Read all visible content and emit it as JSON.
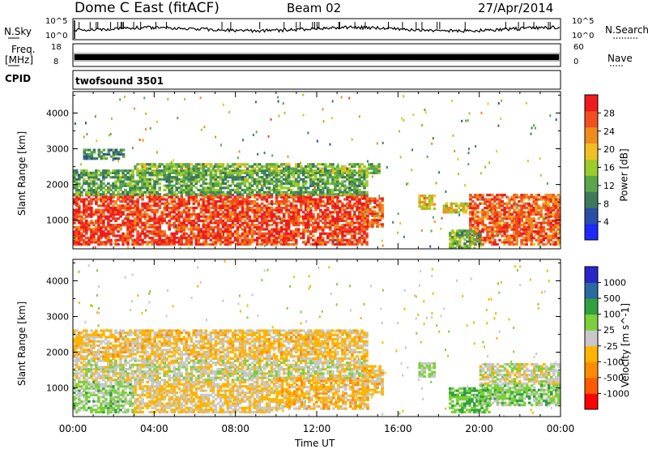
{
  "header": {
    "station": "Dome C East (fitACF)",
    "beam": "Beam 02",
    "date": "27/Apr/2014"
  },
  "top_panels": {
    "nsky_label": "N.Sky",
    "nsky_ticks": [
      "10^5",
      "10^0"
    ],
    "nsearch_label": "N.Search",
    "nsearch_ticks": [
      "10^5",
      "10^0"
    ],
    "freq_label_line1": "Freq.",
    "freq_label_line2": "[MHz]",
    "freq_ticks": [
      "18",
      "8"
    ],
    "nave_label": "Nave",
    "nave_ticks": [
      "60",
      "0"
    ],
    "cpid_label": "CPID",
    "cpid_value": "twofsound 3501"
  },
  "colors": {
    "power_scale": [
      "#1e28ff",
      "#2a4fa8",
      "#3d7a5c",
      "#5aa64a",
      "#9ccc2a",
      "#f0c020",
      "#f08c1e",
      "#f0501e",
      "#ee1c1c"
    ],
    "velocity_scale": [
      "#ff0000",
      "#ff5a00",
      "#ff8c00",
      "#ffb400",
      "#c8c8c8",
      "#7cd03a",
      "#30a040",
      "#2a6aa0",
      "#2828c8"
    ]
  },
  "chart_data": [
    {
      "type": "heatmap",
      "name": "power-panel",
      "title": "",
      "xlabel": "",
      "ylabel": "Slant Range [km]",
      "xlim": [
        "00:00",
        "24:00"
      ],
      "ylim": [
        200,
        4600
      ],
      "x_ticks": [
        "00:00",
        "04:00",
        "08:00",
        "12:00",
        "16:00",
        "20:00",
        "00:00"
      ],
      "y_ticks": [
        "1000",
        "2000",
        "3000",
        "4000"
      ],
      "colorbar_label": "Power [dB]",
      "colorbar_ticks": [
        "4",
        "8",
        "12",
        "16",
        "20",
        "24",
        "28"
      ],
      "value_range": [
        0,
        32
      ],
      "regions": [
        {
          "t": [
            0,
            14.5
          ],
          "r": [
            300,
            1700
          ],
          "value": 28
        },
        {
          "t": [
            14.2,
            15.2
          ],
          "r": [
            800,
            1600
          ],
          "value": 26
        },
        {
          "t": [
            0,
            14.5
          ],
          "r": [
            1700,
            2400
          ],
          "value": 12
        },
        {
          "t": [
            0.5,
            2.5
          ],
          "r": [
            2700,
            3000
          ],
          "value": 10
        },
        {
          "t": [
            3.0,
            15.0
          ],
          "r": [
            2300,
            2600
          ],
          "value": 14
        },
        {
          "t": [
            17.0,
            17.8
          ],
          "r": [
            1300,
            1700
          ],
          "value": 20
        },
        {
          "t": [
            18.2,
            19.5
          ],
          "r": [
            1200,
            1500
          ],
          "value": 18
        },
        {
          "t": [
            19.5,
            24.0
          ],
          "r": [
            300,
            1700
          ],
          "value": 26
        },
        {
          "t": [
            18.5,
            20.0
          ],
          "r": [
            200,
            700
          ],
          "value": 14
        }
      ]
    },
    {
      "type": "heatmap",
      "name": "velocity-panel",
      "title": "",
      "xlabel": "Time UT",
      "ylabel": "Slant Range [km]",
      "xlim": [
        "00:00",
        "24:00"
      ],
      "ylim": [
        200,
        4600
      ],
      "x_ticks": [
        "00:00",
        "04:00",
        "08:00",
        "12:00",
        "16:00",
        "20:00",
        "00:00"
      ],
      "y_ticks": [
        "1000",
        "2000",
        "3000",
        "4000"
      ],
      "colorbar_label": "Velocity [m s^-1]",
      "colorbar_ticks": [
        "1000",
        "500",
        "100",
        "25",
        "-25",
        "-100",
        "-500",
        "-1000"
      ],
      "value_range": [
        -1200,
        1200
      ],
      "regions": [
        {
          "t": [
            0,
            14.5
          ],
          "r": [
            1200,
            1800
          ],
          "value": 0
        },
        {
          "t": [
            0,
            3.0
          ],
          "r": [
            300,
            1200
          ],
          "value": 200
        },
        {
          "t": [
            3.0,
            10.0
          ],
          "r": [
            300,
            1200
          ],
          "value": -150
        },
        {
          "t": [
            10.0,
            14.5
          ],
          "r": [
            400,
            1300
          ],
          "value": -250
        },
        {
          "t": [
            14.2,
            15.2
          ],
          "r": [
            800,
            1600
          ],
          "value": -200
        },
        {
          "t": [
            17.0,
            17.8
          ],
          "r": [
            1300,
            1700
          ],
          "value": 150
        },
        {
          "t": [
            18.5,
            20.5
          ],
          "r": [
            300,
            1000
          ],
          "value": 400
        },
        {
          "t": [
            20.0,
            24.0
          ],
          "r": [
            1100,
            1700
          ],
          "value": 0
        },
        {
          "t": [
            20.0,
            24.0
          ],
          "r": [
            500,
            1100
          ],
          "value": 250
        },
        {
          "t": [
            0,
            14.5
          ],
          "r": [
            1800,
            2600
          ],
          "value": -200
        }
      ]
    }
  ]
}
